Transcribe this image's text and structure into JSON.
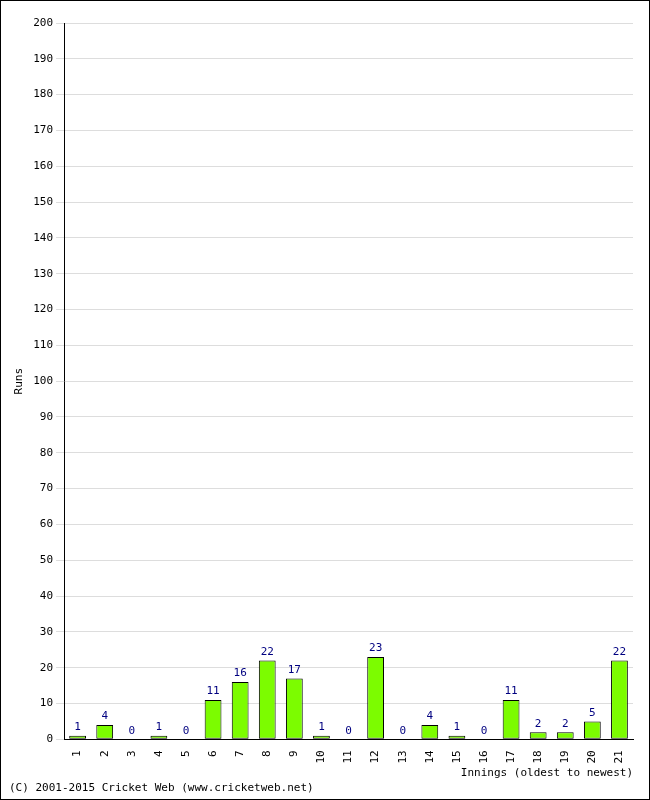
{
  "chart_data": {
    "type": "bar",
    "x_label": "Innings (oldest to newest)",
    "y_label": "Runs",
    "annotations": [
      "(C) 2001-2015 Cricket Web (www.cricketweb.net)"
    ],
    "categories": [
      "1",
      "2",
      "3",
      "4",
      "5",
      "6",
      "7",
      "8",
      "9",
      "10",
      "11",
      "12",
      "13",
      "14",
      "15",
      "16",
      "17",
      "18",
      "19",
      "20",
      "21"
    ],
    "values": [
      1,
      4,
      0,
      1,
      0,
      11,
      16,
      22,
      17,
      1,
      0,
      23,
      0,
      4,
      1,
      0,
      11,
      2,
      2,
      5,
      22
    ],
    "color": "#7cfc00",
    "ylim": [
      0,
      200
    ],
    "yticks": [
      0,
      10,
      20,
      30,
      40,
      50,
      60,
      70,
      80,
      90,
      100,
      110,
      120,
      130,
      140,
      150,
      160,
      170,
      180,
      190,
      200
    ],
    "grid": true,
    "data_labels": true
  }
}
